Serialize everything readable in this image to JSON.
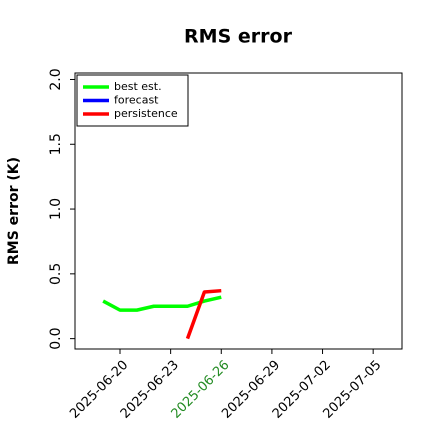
{
  "chart_data": {
    "type": "line",
    "title": "RMS error",
    "ylabel": "RMS error (K)",
    "x": [
      "2025-06-19",
      "2025-06-20",
      "2025-06-21",
      "2025-06-22",
      "2025-06-23",
      "2025-06-24",
      "2025-06-25",
      "2025-06-26"
    ],
    "series": [
      {
        "name": "best est.",
        "color": "#00ff00",
        "values": [
          0.29,
          0.22,
          0.22,
          0.25,
          0.25,
          0.25,
          0.29,
          0.32
        ]
      },
      {
        "name": "forecast",
        "color": "#0000ff",
        "values": [
          null,
          null,
          null,
          null,
          null,
          null,
          null,
          null
        ]
      },
      {
        "name": "persistence",
        "color": "#ff0000",
        "values": [
          null,
          null,
          null,
          null,
          null,
          0.0,
          0.36,
          0.37
        ]
      }
    ],
    "xlim": [
      "2025-06-17T08:00:00Z",
      "2025-07-06T17:00:00Z"
    ],
    "xticks": [
      "2025-06-20",
      "2025-06-23",
      "2025-06-26",
      "2025-06-29",
      "2025-07-02",
      "2025-07-05"
    ],
    "xtick_colors": [
      "#000000",
      "#000000",
      "#228b22",
      "#000000",
      "#000000",
      "#000000"
    ],
    "ylim": [
      -0.08,
      2.05
    ],
    "yticks": [
      {
        "value": 0,
        "label": "0.0"
      },
      {
        "value": 0.5,
        "label": "0.5"
      },
      {
        "value": 1,
        "label": "1.0"
      },
      {
        "value": 1.5,
        "label": "1.5"
      },
      {
        "value": 2,
        "label": "2.0"
      }
    ],
    "legend": "upper left"
  }
}
